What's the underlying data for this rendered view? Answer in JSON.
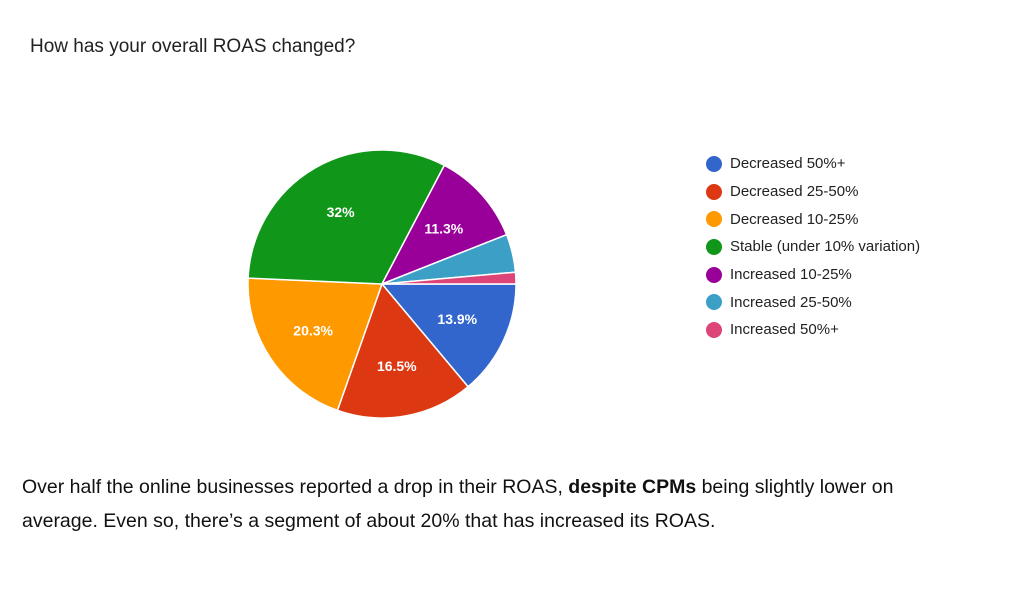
{
  "chart_data": {
    "type": "pie",
    "title": "How has your overall ROAS changed?",
    "legend_position": "right",
    "series": [
      {
        "name": "Decreased 50%+",
        "value": 13.9,
        "label": "13.9%",
        "color": "#3366cc"
      },
      {
        "name": "Decreased 25-50%",
        "value": 16.5,
        "label": "16.5%",
        "color": "#dc3912"
      },
      {
        "name": "Decreased 10-25%",
        "value": 20.3,
        "label": "20.3%",
        "color": "#ff9900"
      },
      {
        "name": "Stable (under 10% variation)",
        "value": 32,
        "label": "32%",
        "color": "#109618"
      },
      {
        "name": "Increased 10-25%",
        "value": 11.3,
        "label": "11.3%",
        "color": "#990099"
      },
      {
        "name": "Increased 25-50%",
        "value": 4.6,
        "label": "",
        "color": "#3b9fc6"
      },
      {
        "name": "Increased 50%+",
        "value": 1.4,
        "label": "",
        "color": "#dd4477"
      }
    ]
  },
  "caption": {
    "part1": "Over half the online businesses reported a drop in their ROAS, ",
    "bold": "despite CPMs",
    "part2": " being slightly lower on average. Even so, there’s a segment of about 20% that has increased its ROAS."
  }
}
